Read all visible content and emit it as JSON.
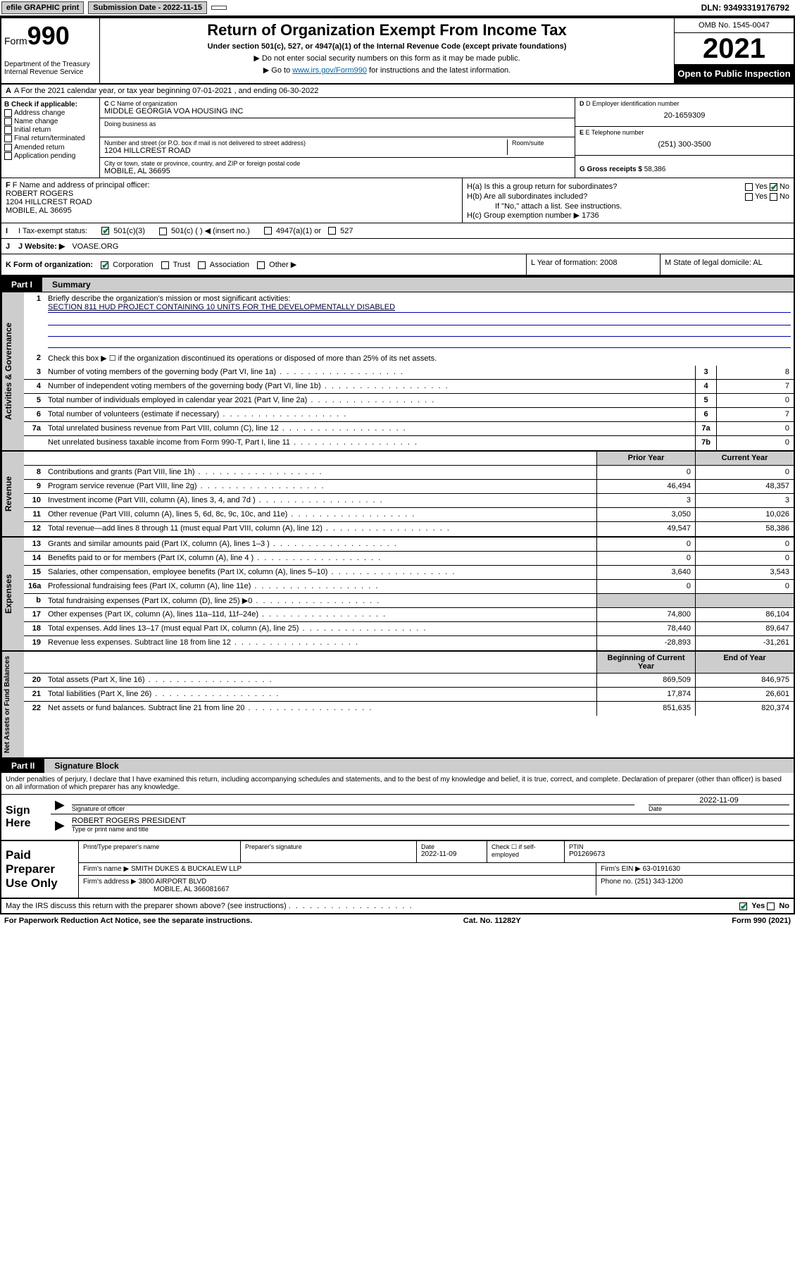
{
  "topbar": {
    "efile": "efile GRAPHIC print",
    "subdate_label": "Submission Date - 2022-11-15",
    "dln": "DLN: 93493319176792"
  },
  "header": {
    "form_prefix": "Form",
    "form_num": "990",
    "title": "Return of Organization Exempt From Income Tax",
    "sub": "Under section 501(c), 527, or 4947(a)(1) of the Internal Revenue Code (except private foundations)",
    "arrow1": "▶ Do not enter social security numbers on this form as it may be made public.",
    "arrow2_pre": "▶ Go to ",
    "arrow2_link": "www.irs.gov/Form990",
    "arrow2_post": " for instructions and the latest information.",
    "dept": "Department of the Treasury\nInternal Revenue Service",
    "omb": "OMB No. 1545-0047",
    "year": "2021",
    "open": "Open to Public Inspection"
  },
  "rowA": "A For the 2021 calendar year, or tax year beginning 07-01-2021   , and ending 06-30-2022",
  "colB": {
    "header": "B Check if applicable:",
    "items": [
      "Address change",
      "Name change",
      "Initial return",
      "Final return/terminated",
      "Amended return",
      "Application pending"
    ]
  },
  "colC": {
    "name_label": "C Name of organization",
    "name": "MIDDLE GEORGIA VOA HOUSING INC",
    "dba": "Doing business as",
    "addr_label": "Number and street (or P.O. box if mail is not delivered to street address)",
    "room_label": "Room/suite",
    "addr": "1204 HILLCREST ROAD",
    "city_label": "City or town, state or province, country, and ZIP or foreign postal code",
    "city": "MOBILE, AL  36695"
  },
  "colD": {
    "ein_label": "D Employer identification number",
    "ein": "20-1659309",
    "tel_label": "E Telephone number",
    "tel": "(251) 300-3500",
    "gross_label": "G Gross receipts $",
    "gross": "58,386"
  },
  "rowF": {
    "f_label": "F Name and address of principal officer:",
    "f_name": "ROBERT ROGERS",
    "f_addr1": "1204 HILLCREST ROAD",
    "f_addr2": "MOBILE, AL  36695",
    "ha": "H(a)  Is this a group return for subordinates?",
    "hb": "H(b)  Are all subordinates included?",
    "hb_note": "If \"No,\" attach a list. See instructions.",
    "hc": "H(c)  Group exemption number ▶   1736",
    "yes": "Yes",
    "no": "No"
  },
  "rowI": {
    "label": "I  Tax-exempt status:",
    "c3": "501(c)(3)",
    "c": "501(c) (  ) ◀ (insert no.)",
    "a1": "4947(a)(1) or",
    "s527": "527"
  },
  "rowJ": {
    "label": "J  Website: ▶",
    "val": "VOASE.ORG"
  },
  "rowK": {
    "label": "K Form of organization:",
    "corp": "Corporation",
    "trust": "Trust",
    "assoc": "Association",
    "other": "Other ▶",
    "L": "L Year of formation: 2008",
    "M": "M State of legal domicile: AL"
  },
  "part1": {
    "hdr": "Part I",
    "title": "Summary"
  },
  "gov": {
    "label": "Activities & Governance",
    "l1": "Briefly describe the organization's mission or most significant activities:",
    "mission": "SECTION 811 HUD PROJECT CONTAINING 10 UNITS FOR THE DEVELOPMENTALLY DISABLED",
    "l2": "Check this box ▶ ☐  if the organization discontinued its operations or disposed of more than 25% of its net assets.",
    "rows": [
      {
        "n": "3",
        "d": "Number of voting members of the governing body (Part VI, line 1a)",
        "b": "3",
        "v": "8"
      },
      {
        "n": "4",
        "d": "Number of independent voting members of the governing body (Part VI, line 1b)",
        "b": "4",
        "v": "7"
      },
      {
        "n": "5",
        "d": "Total number of individuals employed in calendar year 2021 (Part V, line 2a)",
        "b": "5",
        "v": "0"
      },
      {
        "n": "6",
        "d": "Total number of volunteers (estimate if necessary)",
        "b": "6",
        "v": "7"
      },
      {
        "n": "7a",
        "d": "Total unrelated business revenue from Part VIII, column (C), line 12",
        "b": "7a",
        "v": "0"
      },
      {
        "n": "",
        "d": "Net unrelated business taxable income from Form 990-T, Part I, line 11",
        "b": "7b",
        "v": "0"
      }
    ]
  },
  "rev": {
    "label": "Revenue",
    "hdr_prior": "Prior Year",
    "hdr_curr": "Current Year",
    "rows": [
      {
        "n": "8",
        "d": "Contributions and grants (Part VIII, line 1h)",
        "p": "0",
        "c": "0"
      },
      {
        "n": "9",
        "d": "Program service revenue (Part VIII, line 2g)",
        "p": "46,494",
        "c": "48,357"
      },
      {
        "n": "10",
        "d": "Investment income (Part VIII, column (A), lines 3, 4, and 7d )",
        "p": "3",
        "c": "3"
      },
      {
        "n": "11",
        "d": "Other revenue (Part VIII, column (A), lines 5, 6d, 8c, 9c, 10c, and 11e)",
        "p": "3,050",
        "c": "10,026"
      },
      {
        "n": "12",
        "d": "Total revenue—add lines 8 through 11 (must equal Part VIII, column (A), line 12)",
        "p": "49,547",
        "c": "58,386"
      }
    ]
  },
  "exp": {
    "label": "Expenses",
    "rows": [
      {
        "n": "13",
        "d": "Grants and similar amounts paid (Part IX, column (A), lines 1–3 )",
        "p": "0",
        "c": "0"
      },
      {
        "n": "14",
        "d": "Benefits paid to or for members (Part IX, column (A), line 4 )",
        "p": "0",
        "c": "0"
      },
      {
        "n": "15",
        "d": "Salaries, other compensation, employee benefits (Part IX, column (A), lines 5–10)",
        "p": "3,640",
        "c": "3,543"
      },
      {
        "n": "16a",
        "d": "Professional fundraising fees (Part IX, column (A), line 11e)",
        "p": "0",
        "c": "0"
      },
      {
        "n": "b",
        "d": "Total fundraising expenses (Part IX, column (D), line 25) ▶0",
        "p": "",
        "c": "",
        "shade": true
      },
      {
        "n": "17",
        "d": "Other expenses (Part IX, column (A), lines 11a–11d, 11f–24e)",
        "p": "74,800",
        "c": "86,104"
      },
      {
        "n": "18",
        "d": "Total expenses. Add lines 13–17 (must equal Part IX, column (A), line 25)",
        "p": "78,440",
        "c": "89,647"
      },
      {
        "n": "19",
        "d": "Revenue less expenses. Subtract line 18 from line 12",
        "p": "-28,893",
        "c": "-31,261"
      }
    ]
  },
  "net": {
    "label": "Net Assets or Fund Balances",
    "hdr_beg": "Beginning of Current Year",
    "hdr_end": "End of Year",
    "rows": [
      {
        "n": "20",
        "d": "Total assets (Part X, line 16)",
        "p": "869,509",
        "c": "846,975"
      },
      {
        "n": "21",
        "d": "Total liabilities (Part X, line 26)",
        "p": "17,874",
        "c": "26,601"
      },
      {
        "n": "22",
        "d": "Net assets or fund balances. Subtract line 21 from line 20",
        "p": "851,635",
        "c": "820,374"
      }
    ]
  },
  "part2": {
    "hdr": "Part II",
    "title": "Signature Block"
  },
  "sig": {
    "decl": "Under penalties of perjury, I declare that I have examined this return, including accompanying schedules and statements, and to the best of my knowledge and belief, it is true, correct, and complete. Declaration of preparer (other than officer) is based on all information of which preparer has any knowledge.",
    "sign_here": "Sign Here",
    "sig_officer": "Signature of officer",
    "date": "Date",
    "date_val": "2022-11-09",
    "name": "ROBERT ROGERS  PRESIDENT",
    "name_label": "Type or print name and title"
  },
  "paid": {
    "label": "Paid Preparer Use Only",
    "h1": "Print/Type preparer's name",
    "h2": "Preparer's signature",
    "h3": "Date",
    "h3v": "2022-11-09",
    "h4": "Check ☐ if self-employed",
    "h5": "PTIN",
    "h5v": "P01269673",
    "firm_name_l": "Firm's name    ▶",
    "firm_name": "SMITH DUKES & BUCKALEW LLP",
    "firm_ein_l": "Firm's EIN ▶",
    "firm_ein": "63-0191630",
    "firm_addr_l": "Firm's address ▶",
    "firm_addr1": "3800 AIRPORT BLVD",
    "firm_addr2": "MOBILE, AL  366081667",
    "phone_l": "Phone no.",
    "phone": "(251) 343-1200"
  },
  "footer": {
    "discuss": "May the IRS discuss this return with the preparer shown above? (see instructions)",
    "yes": "Yes",
    "no": "No",
    "pra": "For Paperwork Reduction Act Notice, see the separate instructions.",
    "cat": "Cat. No. 11282Y",
    "form": "Form 990 (2021)"
  }
}
